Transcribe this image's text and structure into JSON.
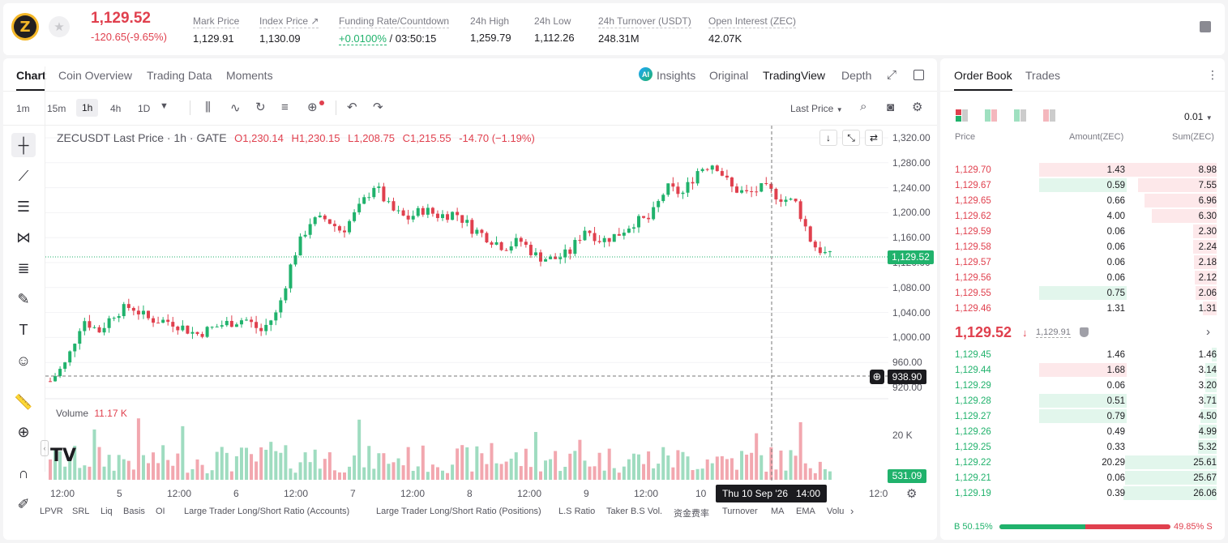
{
  "header": {
    "coin_symbol": "Z",
    "price": "1,129.52",
    "change": "-120.65(-9.65%)",
    "stats": [
      {
        "label": "Mark Price",
        "value": "1,129.91"
      },
      {
        "label": "Index Price ↗",
        "value": "1,130.09"
      },
      {
        "label": "Funding Rate/Countdown",
        "value": "+0.0100%",
        "value2": "/ 03:50:15"
      },
      {
        "label": "24h High",
        "value": "1,259.79"
      },
      {
        "label": "24h Low",
        "value": "1,112.26"
      },
      {
        "label": "24h Turnover (USDT)",
        "value": "248.31M"
      },
      {
        "label": "Open Interest (ZEC)",
        "value": "42.07K"
      }
    ]
  },
  "chart_tabs": [
    "Chart",
    "Coin Overview",
    "Trading Data",
    "Moments"
  ],
  "view_tabs": {
    "insights": "Insights",
    "original": "Original",
    "tradingview": "TradingView",
    "depth": "Depth"
  },
  "timeframes": [
    "1m",
    "15m",
    "1h",
    "4h",
    "1D"
  ],
  "price_type": "Last Price",
  "legend": {
    "title": "ZECUSDT Last Price · 1h · GATE",
    "o": "O1,230.14",
    "h": "H1,230.15",
    "l": "L1,208.75",
    "c": "C1,215.55",
    "chg": "-14.70 (−1.19%)"
  },
  "volume": {
    "label": "Volume",
    "value": "11.17 K",
    "last": "531.09",
    "axis": "20 K"
  },
  "price_axis": [
    "1,320.00",
    "1,280.00",
    "1,240.00",
    "1,200.00",
    "1,160.00",
    "1,120.00",
    "1,080.00",
    "1,040.00",
    "1,000.00",
    "960.00",
    "920.00"
  ],
  "last_price_tag": "1,129.52",
  "crosshair_price": "938.90",
  "time_axis": [
    "12:00",
    "5",
    "12:00",
    "6",
    "12:00",
    "7",
    "12:00",
    "8",
    "12:00",
    "9",
    "12:00",
    "10",
    "12:0"
  ],
  "crosshair_time": "Thu 10 Sep '26   14:00",
  "indicators": [
    "LPVR",
    "SRL",
    "Liq",
    "Basis",
    "OI",
    "Large Trader Long/Short Ratio (Accounts)",
    "Large Trader Long/Short Ratio (Positions)",
    "L.S Ratio",
    "Taker B.S Vol.",
    "资金费率",
    "Turnover",
    "MA",
    "EMA",
    "Volu"
  ],
  "colors": {
    "up": "#20b26c",
    "down": "#e0404e"
  },
  "orderbook": {
    "tabs": [
      "Order Book",
      "Trades"
    ],
    "precision": "0.01",
    "headers": [
      "Price",
      "Amount(ZEC)",
      "Sum(ZEC)"
    ],
    "asks": [
      {
        "p": "1,129.70",
        "a": "1.43",
        "s": "8.98",
        "sf": 1.0,
        "hl": "red"
      },
      {
        "p": "1,129.67",
        "a": "0.59",
        "s": "7.55",
        "sf": 0.84,
        "hl": "green"
      },
      {
        "p": "1,129.65",
        "a": "0.66",
        "s": "6.96",
        "sf": 0.775
      },
      {
        "p": "1,129.62",
        "a": "4.00",
        "s": "6.30",
        "sf": 0.7
      },
      {
        "p": "1,129.59",
        "a": "0.06",
        "s": "2.30",
        "sf": 0.256
      },
      {
        "p": "1,129.58",
        "a": "0.06",
        "s": "2.24",
        "sf": 0.25
      },
      {
        "p": "1,129.57",
        "a": "0.06",
        "s": "2.18",
        "sf": 0.243
      },
      {
        "p": "1,129.56",
        "a": "0.06",
        "s": "2.12",
        "sf": 0.236
      },
      {
        "p": "1,129.55",
        "a": "0.75",
        "s": "2.06",
        "sf": 0.229,
        "hl": "green"
      },
      {
        "p": "1,129.46",
        "a": "1.31",
        "s": "1.31",
        "sf": 0.146
      }
    ],
    "mid_price": "1,129.52",
    "mid_mark": "1,129.91",
    "bids": [
      {
        "p": "1,129.45",
        "a": "1.46",
        "s": "1.46",
        "sf": 0.056
      },
      {
        "p": "1,129.44",
        "a": "1.68",
        "s": "3.14",
        "sf": 0.12,
        "hl": "red"
      },
      {
        "p": "1,129.29",
        "a": "0.06",
        "s": "3.20",
        "sf": 0.123
      },
      {
        "p": "1,129.28",
        "a": "0.51",
        "s": "3.71",
        "sf": 0.142,
        "hl": "green"
      },
      {
        "p": "1,129.27",
        "a": "0.79",
        "s": "4.50",
        "sf": 0.173,
        "hl": "green"
      },
      {
        "p": "1,129.26",
        "a": "0.49",
        "s": "4.99",
        "sf": 0.191
      },
      {
        "p": "1,129.25",
        "a": "0.33",
        "s": "5.32",
        "sf": 0.204
      },
      {
        "p": "1,129.22",
        "a": "20.29",
        "s": "25.61",
        "sf": 0.98
      },
      {
        "p": "1,129.21",
        "a": "0.06",
        "s": "25.67",
        "sf": 0.985
      },
      {
        "p": "1,129.19",
        "a": "0.39",
        "s": "26.06",
        "sf": 1.0
      }
    ],
    "ratio": {
      "buy": "B 50.15%",
      "sell": "49.85% S",
      "buy_frac": 0.5015
    }
  }
}
